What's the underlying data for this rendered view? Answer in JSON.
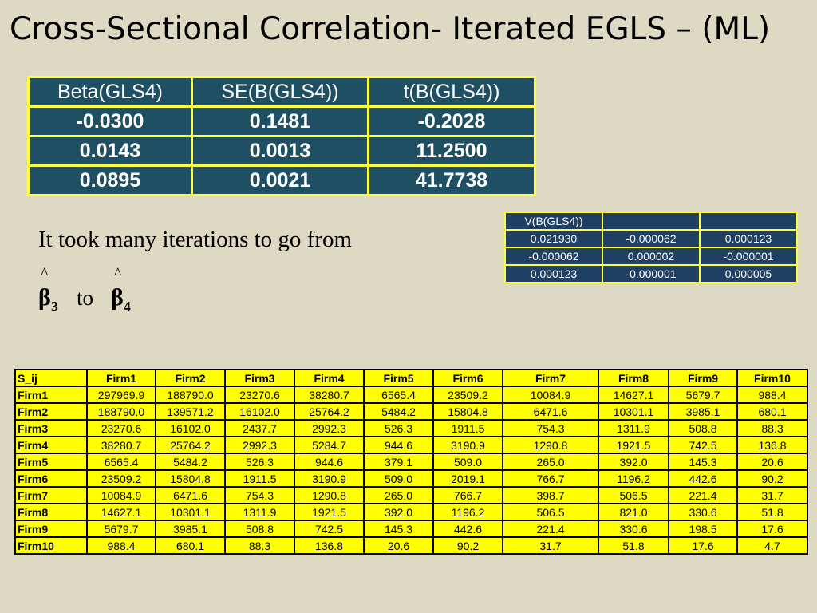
{
  "title": "Cross-Sectional Correlation- Iterated EGLS – (ML)",
  "beta_table": {
    "headers": [
      "Beta(GLS4)",
      "SE(B(GLS4))",
      "t(B(GLS4))"
    ],
    "rows": [
      [
        "-0.0300",
        "0.1481",
        "-0.2028"
      ],
      [
        "0.0143",
        "0.0013",
        "11.2500"
      ],
      [
        "0.0895",
        "0.0021",
        "41.7738"
      ]
    ]
  },
  "v_table": {
    "headers": [
      "V(B(GLS4))",
      "",
      ""
    ],
    "rows": [
      [
        "0.021930",
        "-0.000062",
        "0.000123"
      ],
      [
        "-0.000062",
        "0.000002",
        "-0.000001"
      ],
      [
        "0.000123",
        "-0.000001",
        "0.000005"
      ]
    ]
  },
  "text": {
    "line1": "It took many iterations to go from",
    "hat": "^",
    "beta": "β",
    "sub3": "3",
    "to": "to",
    "sub4": "4"
  },
  "s_table": {
    "headers": [
      "S_ij",
      "Firm1",
      "Firm2",
      "Firm3",
      "Firm4",
      "Firm5",
      "Firm6",
      "Firm7",
      "Firm8",
      "Firm9",
      "Firm10"
    ],
    "rows": [
      [
        "Firm1",
        "297969.9",
        "188790.0",
        "23270.6",
        "38280.7",
        "6565.4",
        "23509.2",
        "10084.9",
        "14627.1",
        "5679.7",
        "988.4"
      ],
      [
        "Firm2",
        "188790.0",
        "139571.2",
        "16102.0",
        "25764.2",
        "5484.2",
        "15804.8",
        "6471.6",
        "10301.1",
        "3985.1",
        "680.1"
      ],
      [
        "Firm3",
        "23270.6",
        "16102.0",
        "2437.7",
        "2992.3",
        "526.3",
        "1911.5",
        "754.3",
        "1311.9",
        "508.8",
        "88.3"
      ],
      [
        "Firm4",
        "38280.7",
        "25764.2",
        "2992.3",
        "5284.7",
        "944.6",
        "3190.9",
        "1290.8",
        "1921.5",
        "742.5",
        "136.8"
      ],
      [
        "Firm5",
        "6565.4",
        "5484.2",
        "526.3",
        "944.6",
        "379.1",
        "509.0",
        "265.0",
        "392.0",
        "145.3",
        "20.6"
      ],
      [
        "Firm6",
        "23509.2",
        "15804.8",
        "1911.5",
        "3190.9",
        "509.0",
        "2019.1",
        "766.7",
        "1196.2",
        "442.6",
        "90.2"
      ],
      [
        "Firm7",
        "10084.9",
        "6471.6",
        "754.3",
        "1290.8",
        "265.0",
        "766.7",
        "398.7",
        "506.5",
        "221.4",
        "31.7"
      ],
      [
        "Firm8",
        "14627.1",
        "10301.1",
        "1311.9",
        "1921.5",
        "392.0",
        "1196.2",
        "506.5",
        "821.0",
        "330.6",
        "51.8"
      ],
      [
        "Firm9",
        "5679.7",
        "3985.1",
        "508.8",
        "742.5",
        "145.3",
        "442.6",
        "221.4",
        "330.6",
        "198.5",
        "17.6"
      ],
      [
        "Firm10",
        "988.4",
        "680.1",
        "88.3",
        "136.8",
        "20.6",
        "90.2",
        "31.7",
        "51.8",
        "17.6",
        "4.7"
      ]
    ]
  }
}
